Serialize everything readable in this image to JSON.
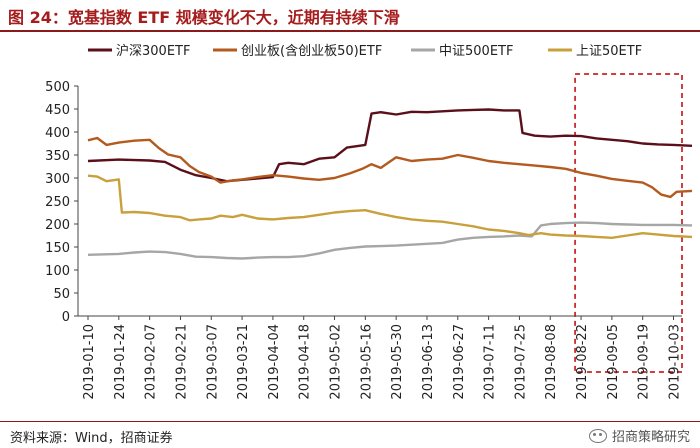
{
  "title": "图 24：宽基指数 ETF 规模变化不大，近期有持续下滑",
  "source": "资料来源：Wind，招商证券",
  "watermark": {
    "text": "招商策略研究",
    "icon": "wechat-icon"
  },
  "chart_data": {
    "type": "line",
    "ylim": [
      0,
      500
    ],
    "yticks": [
      0,
      50,
      100,
      150,
      200,
      250,
      300,
      350,
      400,
      450,
      500
    ],
    "xlabels": [
      "2019-01-10",
      "2019-01-24",
      "2019-02-07",
      "2019-02-21",
      "2019-03-07",
      "2019-03-21",
      "2019-04-04",
      "2019-04-18",
      "2019-05-02",
      "2019-05-16",
      "2019-05-30",
      "2019-06-13",
      "2019-06-27",
      "2019-07-11",
      "2019-07-25",
      "2019-08-08",
      "2019-08-22",
      "2019-09-05",
      "2019-09-19",
      "2019-10-03"
    ],
    "grid": false,
    "legend_position": "top",
    "highlight": {
      "from_index": 16,
      "to_index": 19.6,
      "color": "#c00000",
      "style": "dashed"
    },
    "series": [
      {
        "name": "沪深300ETF",
        "color": "#5b0f1a",
        "values": [
          [
            0,
            337
          ],
          [
            1,
            340
          ],
          [
            2,
            338
          ],
          [
            2.5,
            335
          ],
          [
            3,
            318
          ],
          [
            3.5,
            306
          ],
          [
            4,
            300
          ],
          [
            4.5,
            293
          ],
          [
            5,
            296
          ],
          [
            6,
            302
          ],
          [
            6.2,
            330
          ],
          [
            6.5,
            333
          ],
          [
            7,
            330
          ],
          [
            7.5,
            342
          ],
          [
            8,
            345
          ],
          [
            8.4,
            366
          ],
          [
            8.8,
            370
          ],
          [
            9,
            372
          ],
          [
            9.2,
            440
          ],
          [
            9.5,
            443
          ],
          [
            10,
            438
          ],
          [
            10.5,
            444
          ],
          [
            11,
            443
          ],
          [
            11.5,
            445
          ],
          [
            12,
            447
          ],
          [
            12.5,
            448
          ],
          [
            13,
            449
          ],
          [
            13.5,
            447
          ],
          [
            14,
            447
          ],
          [
            14.1,
            398
          ],
          [
            14.5,
            392
          ],
          [
            15,
            390
          ],
          [
            15.5,
            392
          ],
          [
            16,
            391
          ],
          [
            16.5,
            386
          ],
          [
            17,
            383
          ],
          [
            17.5,
            380
          ],
          [
            18,
            375
          ],
          [
            18.5,
            373
          ],
          [
            19,
            372
          ],
          [
            19.6,
            370
          ]
        ]
      },
      {
        "name": "创业板(含创业板50)ETF",
        "color": "#b35a1f",
        "values": [
          [
            0,
            382
          ],
          [
            0.3,
            387
          ],
          [
            0.6,
            372
          ],
          [
            1,
            377
          ],
          [
            1.5,
            381
          ],
          [
            2,
            383
          ],
          [
            2.3,
            365
          ],
          [
            2.6,
            351
          ],
          [
            3,
            345
          ],
          [
            3.3,
            326
          ],
          [
            3.6,
            313
          ],
          [
            4,
            303
          ],
          [
            4.3,
            290
          ],
          [
            4.7,
            295
          ],
          [
            5,
            297
          ],
          [
            5.5,
            302
          ],
          [
            6,
            306
          ],
          [
            6.5,
            303
          ],
          [
            7,
            299
          ],
          [
            7.5,
            296
          ],
          [
            8,
            300
          ],
          [
            8.5,
            310
          ],
          [
            8.9,
            320
          ],
          [
            9.2,
            330
          ],
          [
            9.5,
            322
          ],
          [
            10,
            345
          ],
          [
            10.5,
            337
          ],
          [
            11,
            340
          ],
          [
            11.5,
            342
          ],
          [
            12,
            350
          ],
          [
            12.5,
            344
          ],
          [
            13,
            337
          ],
          [
            13.5,
            333
          ],
          [
            14,
            330
          ],
          [
            14.5,
            327
          ],
          [
            15,
            324
          ],
          [
            15.5,
            320
          ],
          [
            16,
            311
          ],
          [
            16.5,
            305
          ],
          [
            17,
            298
          ],
          [
            17.5,
            294
          ],
          [
            18,
            290
          ],
          [
            18.3,
            280
          ],
          [
            18.6,
            264
          ],
          [
            18.9,
            259
          ],
          [
            19.1,
            270
          ],
          [
            19.6,
            272
          ]
        ]
      },
      {
        "name": "中证500ETF",
        "color": "#a6a6a6",
        "values": [
          [
            0,
            133
          ],
          [
            1,
            135
          ],
          [
            1.5,
            138
          ],
          [
            2,
            140
          ],
          [
            2.5,
            139
          ],
          [
            3,
            135
          ],
          [
            3.5,
            129
          ],
          [
            4,
            128
          ],
          [
            4.5,
            126
          ],
          [
            5,
            125
          ],
          [
            5.5,
            127
          ],
          [
            6,
            128
          ],
          [
            6.5,
            128
          ],
          [
            7,
            130
          ],
          [
            7.5,
            136
          ],
          [
            8,
            144
          ],
          [
            8.5,
            148
          ],
          [
            9,
            151
          ],
          [
            9.5,
            152
          ],
          [
            10,
            153
          ],
          [
            10.5,
            155
          ],
          [
            11,
            157
          ],
          [
            11.5,
            159
          ],
          [
            12,
            166
          ],
          [
            12.5,
            170
          ],
          [
            13,
            172
          ],
          [
            13.5,
            173
          ],
          [
            14,
            175
          ],
          [
            14.4,
            173
          ],
          [
            14.7,
            197
          ],
          [
            15,
            200
          ],
          [
            15.5,
            202
          ],
          [
            16,
            203
          ],
          [
            16.5,
            202
          ],
          [
            17,
            200
          ],
          [
            17.5,
            199
          ],
          [
            18,
            198
          ],
          [
            18.5,
            198
          ],
          [
            19,
            198
          ],
          [
            19.6,
            197
          ]
        ]
      },
      {
        "name": "上证50ETF",
        "color": "#c8a03c",
        "values": [
          [
            0,
            305
          ],
          [
            0.3,
            303
          ],
          [
            0.6,
            293
          ],
          [
            1,
            297
          ],
          [
            1.1,
            225
          ],
          [
            1.5,
            226
          ],
          [
            2,
            224
          ],
          [
            2.5,
            218
          ],
          [
            3,
            215
          ],
          [
            3.3,
            208
          ],
          [
            3.6,
            210
          ],
          [
            4,
            212
          ],
          [
            4.3,
            218
          ],
          [
            4.7,
            215
          ],
          [
            5,
            220
          ],
          [
            5.5,
            212
          ],
          [
            6,
            210
          ],
          [
            6.5,
            213
          ],
          [
            7,
            215
          ],
          [
            7.5,
            220
          ],
          [
            8,
            225
          ],
          [
            8.5,
            228
          ],
          [
            9,
            230
          ],
          [
            9.5,
            222
          ],
          [
            10,
            215
          ],
          [
            10.5,
            210
          ],
          [
            11,
            207
          ],
          [
            11.5,
            205
          ],
          [
            12,
            200
          ],
          [
            12.5,
            195
          ],
          [
            13,
            188
          ],
          [
            13.5,
            185
          ],
          [
            14,
            180
          ],
          [
            14.3,
            176
          ],
          [
            14.7,
            180
          ],
          [
            15,
            177
          ],
          [
            15.5,
            175
          ],
          [
            16,
            174
          ],
          [
            16.5,
            172
          ],
          [
            17,
            170
          ],
          [
            17.5,
            175
          ],
          [
            18,
            180
          ],
          [
            18.5,
            177
          ],
          [
            19,
            174
          ],
          [
            19.6,
            172
          ]
        ]
      }
    ]
  }
}
